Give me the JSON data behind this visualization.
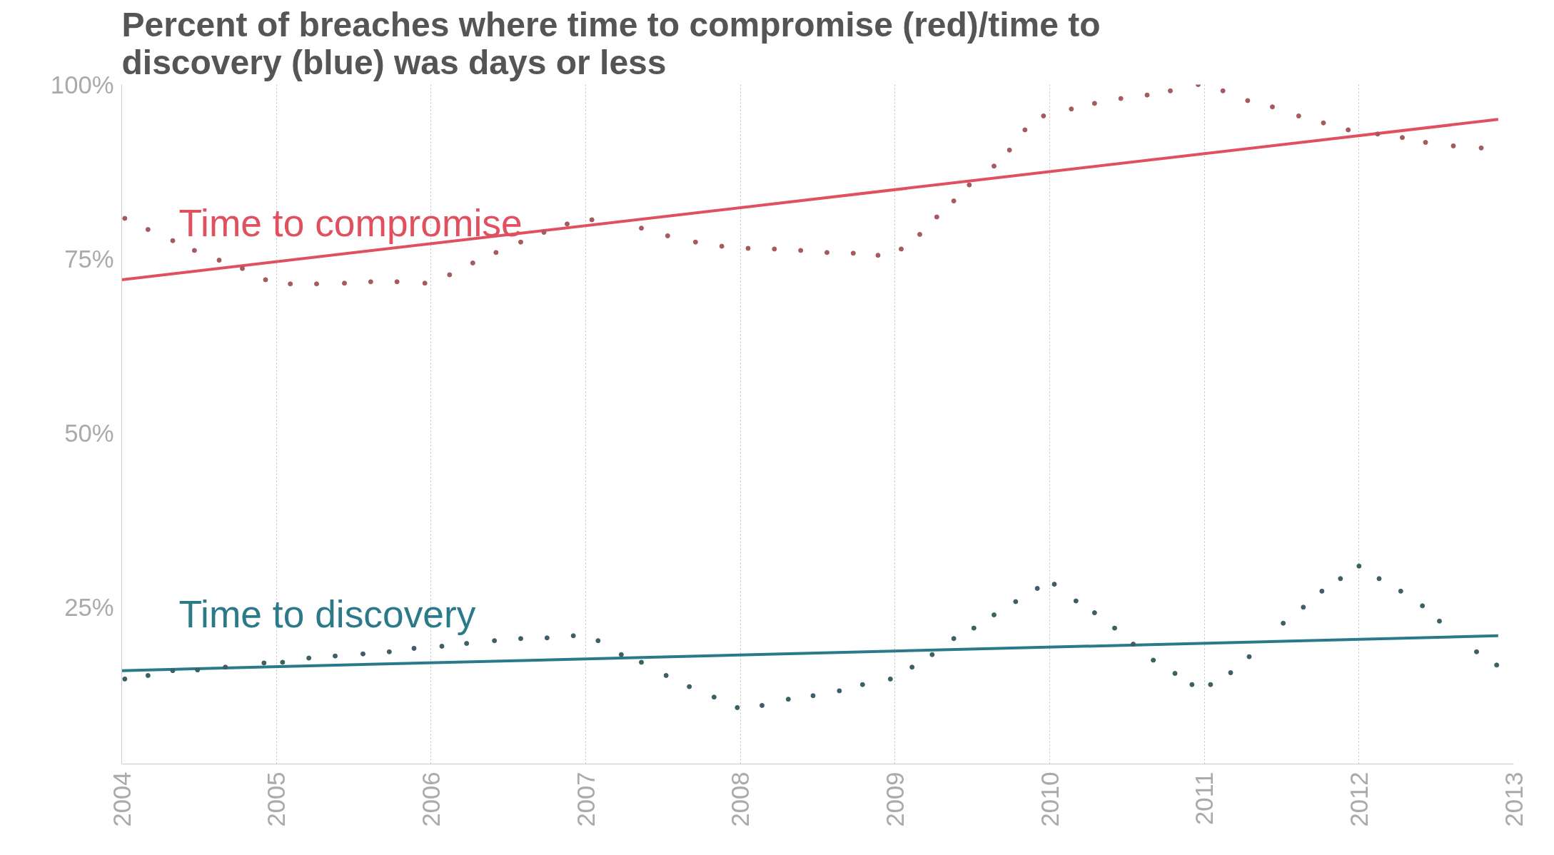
{
  "chart_data": {
    "type": "scatter",
    "title": "Percent of breaches where time to compromise (red)/time to\ndiscovery (blue) was days or less",
    "xlim": [
      2004,
      2013
    ],
    "ylim": [
      2.5,
      100
    ],
    "xticks": [
      2004,
      2005,
      2006,
      2007,
      2008,
      2009,
      2010,
      2011,
      2012,
      2013
    ],
    "yticks": [
      {
        "value": 25,
        "label": "25%"
      },
      {
        "value": 50,
        "label": "50%"
      },
      {
        "value": 75,
        "label": "75%"
      },
      {
        "value": 100,
        "label": "100%"
      }
    ],
    "grid": "x",
    "series": [
      {
        "marker": "circle",
        "color": "#a45a5e",
        "x": [
          2004.02,
          2004.17,
          2004.33,
          2004.47,
          2004.63,
          2004.78,
          2004.93,
          2005.09,
          2005.26,
          2005.44,
          2005.61,
          2005.78,
          2005.96,
          2006.12,
          2006.27,
          2006.42,
          2006.58,
          2006.73,
          2006.88,
          2007.04,
          2007.36,
          2007.53,
          2007.71,
          2007.88,
          2008.05,
          2008.22,
          2008.39,
          2008.56,
          2008.73,
          2008.89,
          2009.04,
          2009.16,
          2009.27,
          2009.38,
          2009.48,
          2009.64,
          2009.74,
          2009.84,
          2009.96,
          2010.14,
          2010.29,
          2010.46,
          2010.63,
          2010.78,
          2010.96,
          2011.12,
          2011.28,
          2011.44,
          2011.61,
          2011.77,
          2011.93,
          2012.12,
          2012.28,
          2012.43,
          2012.61,
          2012.79
        ],
        "values": [
          80.8,
          79.2,
          77.6,
          76.2,
          74.8,
          73.6,
          72,
          71.4,
          71.4,
          71.5,
          71.7,
          71.7,
          71.5,
          72.7,
          74.4,
          75.9,
          77.4,
          78.8,
          80,
          80.6,
          79.4,
          78.3,
          77.4,
          76.8,
          76.5,
          76.4,
          76.2,
          75.9,
          75.8,
          75.5,
          76.4,
          78.5,
          81,
          83.3,
          85.6,
          88.3,
          90.6,
          93.5,
          95.5,
          96.5,
          97.3,
          98,
          98.5,
          99.1,
          100,
          99.1,
          97.7,
          96.8,
          95.5,
          94.5,
          93.5,
          92.9,
          92.4,
          91.7,
          91.2,
          90.9
        ]
      },
      {
        "marker": "circle",
        "color": "#3d5f66",
        "x": [
          2004.02,
          2004.17,
          2004.33,
          2004.49,
          2004.67,
          2004.92,
          2005.04,
          2005.21,
          2005.38,
          2005.56,
          2005.73,
          2005.89,
          2006.07,
          2006.23,
          2006.41,
          2006.58,
          2006.75,
          2006.92,
          2007.08,
          2007.23,
          2007.36,
          2007.52,
          2007.67,
          2007.83,
          2007.98,
          2008.14,
          2008.31,
          2008.47,
          2008.64,
          2008.79,
          2008.97,
          2009.11,
          2009.24,
          2009.38,
          2009.51,
          2009.64,
          2009.78,
          2009.92,
          2010.03,
          2010.17,
          2010.29,
          2010.42,
          2010.54,
          2010.67,
          2010.81,
          2010.92,
          2011.04,
          2011.17,
          2011.29,
          2011.51,
          2011.64,
          2011.76,
          2011.88,
          2012,
          2012.13,
          2012.27,
          2012.41,
          2012.52,
          2012.76,
          2012.89
        ],
        "values": [
          14.7,
          15.2,
          15.9,
          16,
          16.4,
          17,
          17.1,
          17.7,
          18,
          18.3,
          18.6,
          19.1,
          19.4,
          19.8,
          20.2,
          20.5,
          20.6,
          20.9,
          20.2,
          18.2,
          17.1,
          15.2,
          13.6,
          12.1,
          10.6,
          10.9,
          11.8,
          12.3,
          13,
          13.9,
          14.7,
          16.4,
          18.2,
          20.5,
          22,
          23.9,
          25.8,
          27.7,
          28.3,
          25.9,
          24.2,
          22,
          19.7,
          17.4,
          15.5,
          13.9,
          13.9,
          15.6,
          17.9,
          22.7,
          25,
          27.3,
          29.1,
          30.9,
          29.1,
          27.3,
          25.2,
          23,
          18.6,
          16.7
        ]
      },
      {
        "type": "line",
        "marker": "none",
        "name": "Time to compromise",
        "color": "#e0505f",
        "x": [
          2004,
          2012.9
        ],
        "values": [
          72,
          95
        ]
      },
      {
        "type": "line",
        "marker": "none",
        "name": "Time to discovery",
        "color": "#2a7a8a",
        "x": [
          2004,
          2012.9
        ],
        "values": [
          15.9,
          20.9
        ]
      }
    ]
  }
}
